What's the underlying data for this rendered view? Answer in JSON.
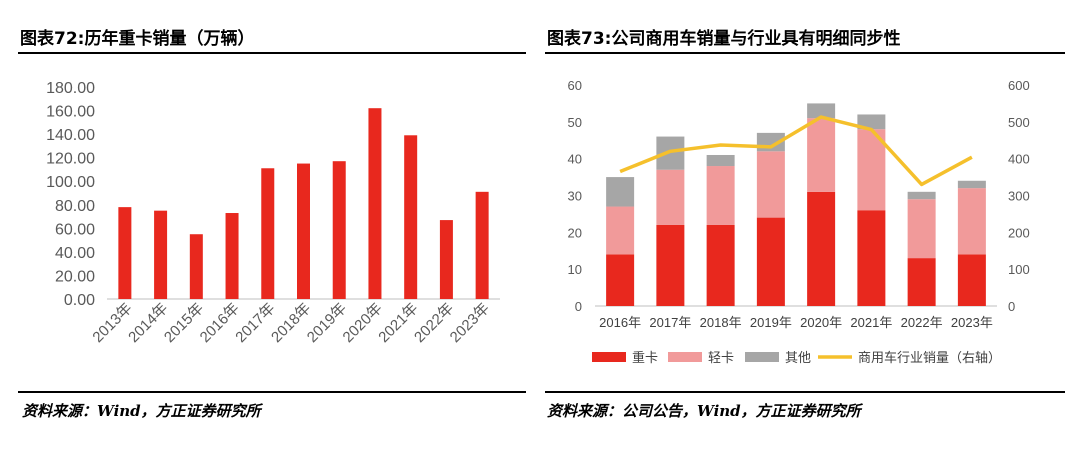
{
  "left": {
    "title": "图表72:历年重卡销量（万辆）",
    "source": "资料来源：Wind，方正证券研究所",
    "chart_data": {
      "type": "bar",
      "categories": [
        "2013年",
        "2014年",
        "2015年",
        "2016年",
        "2017年",
        "2018年",
        "2019年",
        "2020年",
        "2021年",
        "2022年",
        "2023年"
      ],
      "values": [
        78,
        75,
        55,
        73,
        111,
        115,
        117,
        162,
        139,
        67,
        91
      ],
      "ylim": [
        0,
        180
      ],
      "yticks": [
        "0.00",
        "20.00",
        "40.00",
        "60.00",
        "80.00",
        "100.00",
        "120.00",
        "140.00",
        "160.00",
        "180.00"
      ],
      "xlabel": "",
      "ylabel": "",
      "color": "#e8281e",
      "grid": false
    }
  },
  "right": {
    "title": "图表73:公司商用车销量与行业具有明细同步性",
    "source": "资料来源：公司公告，Wind，方正证券研究所",
    "chart_data": {
      "type": "bar",
      "stacked": true,
      "categories": [
        "2016年",
        "2017年",
        "2018年",
        "2019年",
        "2020年",
        "2021年",
        "2022年",
        "2023年"
      ],
      "series": [
        {
          "name": "重卡",
          "type": "bar",
          "color": "#e8281e",
          "values": [
            14,
            22,
            22,
            24,
            31,
            26,
            13,
            14
          ]
        },
        {
          "name": "轻卡",
          "type": "bar",
          "color": "#f19a9a",
          "values": [
            13,
            15,
            16,
            18,
            20,
            22,
            16,
            18
          ]
        },
        {
          "name": "其他",
          "type": "bar",
          "color": "#a6a6a6",
          "values": [
            8,
            9,
            3,
            5,
            4,
            4,
            2,
            2
          ]
        },
        {
          "name": "商用车行业销量（右轴）",
          "type": "line",
          "axis": "right",
          "color": "#f5c02c",
          "values": [
            365,
            420,
            437,
            432,
            513,
            479,
            330,
            404
          ]
        }
      ],
      "ylim_left": [
        0,
        60
      ],
      "ylim_right": [
        0,
        600
      ],
      "yticks_left": [
        "0",
        "10",
        "20",
        "30",
        "40",
        "50",
        "60"
      ],
      "yticks_right": [
        "0",
        "100",
        "200",
        "300",
        "400",
        "500",
        "600"
      ],
      "legend_position": "bottom",
      "grid": false
    }
  }
}
